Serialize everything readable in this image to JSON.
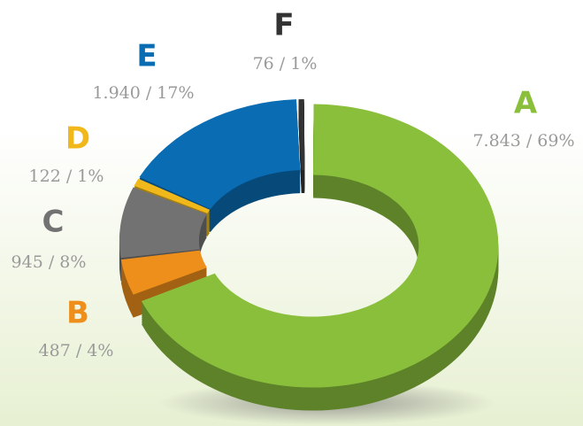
{
  "chart_data": {
    "type": "pie",
    "categories": [
      "A",
      "B",
      "C",
      "D",
      "E",
      "F"
    ],
    "values": [
      7843,
      487,
      945,
      122,
      1940,
      76
    ],
    "value_labels": [
      "7.843 / 69%",
      "487 / 4%",
      "945 / 8%",
      "122 / 1%",
      "1.940 / 17%",
      "76 / 1%"
    ],
    "colors": [
      "#8abf3c",
      "#ee8f1c",
      "#727272",
      "#f0b81a",
      "#0a6db3",
      "#333333"
    ]
  }
}
